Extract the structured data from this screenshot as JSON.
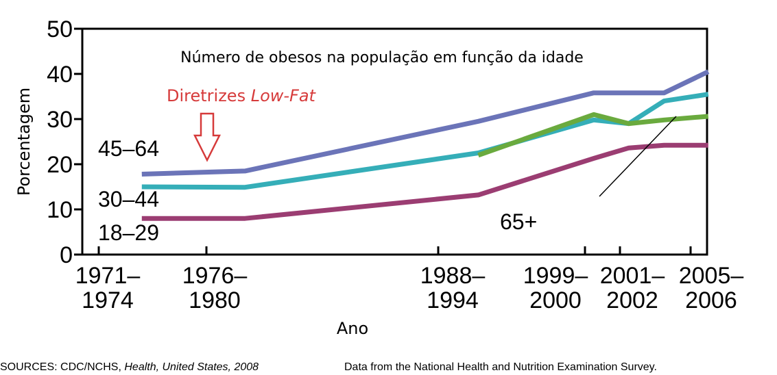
{
  "chart_data": {
    "type": "line",
    "title": "Número de obesos na população em função da idade",
    "xlabel": "Ano",
    "ylabel": "Porcentagem",
    "ylim": [
      0,
      50
    ],
    "yticks": [
      "0",
      "10",
      "20",
      "30",
      "40",
      "50"
    ],
    "categories": [
      "1971–1974",
      "1976–1980",
      "1988–1994",
      "1999–2000",
      "2001–2002",
      "2005–2006"
    ],
    "x_tick_labels": [
      {
        "line1": "1971–",
        "line2": "1974"
      },
      {
        "line1": "1976–",
        "line2": "1980"
      },
      {
        "line1": "1988–",
        "line2": "1994"
      },
      {
        "line1": "1999–",
        "line2": "2000"
      },
      {
        "line1": "2001–",
        "line2": "2002"
      },
      {
        "line1": "2005–",
        "line2": "2006"
      }
    ],
    "grid": false,
    "series": [
      {
        "name": "45–64",
        "color": "#6b74b8",
        "points": [
          [
            1973,
            17.8
          ],
          [
            1978,
            18.5
          ],
          [
            1991,
            29.5
          ],
          [
            1999.5,
            35.8
          ],
          [
            2001.5,
            35.8
          ],
          [
            2003.5,
            35.8
          ],
          [
            2006,
            40.5
          ]
        ]
      },
      {
        "name": "30–44",
        "color": "#35aeb8",
        "points": [
          [
            1973,
            15.0
          ],
          [
            1978,
            14.9
          ],
          [
            1991,
            22.5
          ],
          [
            1999.5,
            29.8
          ],
          [
            2001.5,
            29.0
          ],
          [
            2003.5,
            34.0
          ],
          [
            2006,
            35.5
          ]
        ]
      },
      {
        "name": "65+",
        "color": "#6aaa3e",
        "points": [
          [
            1991,
            22.0
          ],
          [
            1999.5,
            31.0
          ],
          [
            2001.5,
            29.0
          ],
          [
            2003.5,
            29.8
          ],
          [
            2006,
            30.6
          ]
        ]
      },
      {
        "name": "18–29",
        "color": "#9b3d72",
        "points": [
          [
            1973,
            8.0
          ],
          [
            1978,
            8.0
          ],
          [
            1991,
            13.2
          ],
          [
            1999.5,
            21.3
          ],
          [
            2001.5,
            23.6
          ],
          [
            2003.5,
            24.2
          ],
          [
            2006,
            24.2
          ]
        ]
      }
    ],
    "annotations": {
      "low_fat": {
        "prefix": "Diretrizes ",
        "emphasis": "Low-Fat",
        "x": 1978,
        "color": "#d63a3a"
      }
    }
  },
  "footer": {
    "sources_prefix": "SOURCES: CDC/NCHS, ",
    "sources_italic": "Health, United States, 2008",
    "data_note": "Data from the National Health and Nutrition Examination Survey."
  }
}
